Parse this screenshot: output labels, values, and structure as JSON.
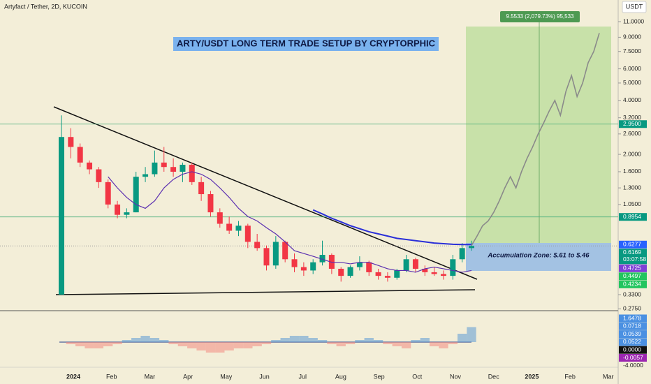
{
  "chart_data": {
    "type": "candlestick",
    "header": "Artyfact / Tether, 2D, KUCOIN",
    "currency": "USDT",
    "title": "ARTY/USDT LONG TERM TRADE SETUP BY CRYPTORPHIC",
    "target_label": "9.5533 (2,079.73%) 95,533",
    "zone_label": "Accumulation Zone: $.61 to $.46",
    "log_scale": true,
    "ylim": [
      0.275,
      11.0
    ],
    "yticks": [
      {
        "value": 11,
        "label": "11.0000"
      },
      {
        "value": 9,
        "label": "9.0000"
      },
      {
        "value": 7.5,
        "label": "7.5000"
      },
      {
        "value": 6,
        "label": "6.0000"
      },
      {
        "value": 5,
        "label": "5.0000"
      },
      {
        "value": 4,
        "label": "4.0000"
      },
      {
        "value": 3.2,
        "label": "3.2000"
      },
      {
        "value": 2.6,
        "label": "2.6000"
      },
      {
        "value": 2,
        "label": "2.0000"
      },
      {
        "value": 1.6,
        "label": "1.6000"
      },
      {
        "value": 1.3,
        "label": "1.3000"
      },
      {
        "value": 1.05,
        "label": "1.0500"
      },
      {
        "value": 0.33,
        "label": "0.3300"
      },
      {
        "value": 0.275,
        "label": "0.2750"
      }
    ],
    "price_tags": [
      {
        "value": 2.95,
        "label": "2.9500",
        "color": "#089981"
      },
      {
        "value": 0.8954,
        "label": "0.8954",
        "color": "#089981"
      },
      {
        "value": 0.6277,
        "label": "0.6277",
        "color": "#2962ff"
      },
      {
        "value": 0.6169,
        "label": "0.6169",
        "color": "#089981"
      },
      {
        "value": 0.4725,
        "label": "0.4725",
        "color": "#7e3fd6"
      },
      {
        "value": 0.4497,
        "label": "0.4497",
        "color": "#22c55e"
      },
      {
        "value": 0.4234,
        "label": "0.4234",
        "color": "#22c55e"
      }
    ],
    "countdown": "03:07:58",
    "x_labels": [
      "2024",
      "Feb",
      "Mar",
      "Apr",
      "May",
      "Jun",
      "Jul",
      "Aug",
      "Sep",
      "Oct",
      "Nov",
      "Dec",
      "2025",
      "Feb",
      "Mar"
    ],
    "candles": {
      "open": [
        0.33,
        2.5,
        2.2,
        1.8,
        1.65,
        1.4,
        1.05,
        0.92,
        0.95,
        1.5,
        1.55,
        1.8,
        1.7,
        1.6,
        1.75,
        1.4,
        1.2,
        0.95,
        0.82,
        0.75,
        0.8,
        0.65,
        0.6,
        0.48,
        0.65,
        0.52,
        0.47,
        0.45,
        0.5,
        0.55,
        0.46,
        0.42,
        0.47,
        0.5,
        0.44,
        0.42,
        0.41,
        0.45,
        0.52,
        0.46,
        0.44,
        0.43,
        0.42,
        0.52,
        0.6
      ],
      "high": [
        3.3,
        2.8,
        2.3,
        1.85,
        1.7,
        1.45,
        1.1,
        1.0,
        1.6,
        1.7,
        2.1,
        2.2,
        1.9,
        1.8,
        1.8,
        1.5,
        1.25,
        1.0,
        0.9,
        0.85,
        0.82,
        0.72,
        0.62,
        0.7,
        0.66,
        0.56,
        0.5,
        0.52,
        0.66,
        0.56,
        0.47,
        0.48,
        0.54,
        0.51,
        0.46,
        0.44,
        0.46,
        0.55,
        0.53,
        0.48,
        0.47,
        0.45,
        0.55,
        0.64,
        0.66
      ],
      "low": [
        0.33,
        1.9,
        1.7,
        1.55,
        1.3,
        1.0,
        0.88,
        0.88,
        0.95,
        1.4,
        1.5,
        1.6,
        1.5,
        1.4,
        1.35,
        1.1,
        0.9,
        0.78,
        0.72,
        0.7,
        0.6,
        0.58,
        0.45,
        0.46,
        0.5,
        0.44,
        0.42,
        0.43,
        0.48,
        0.43,
        0.39,
        0.41,
        0.45,
        0.42,
        0.4,
        0.39,
        0.4,
        0.44,
        0.44,
        0.42,
        0.42,
        0.4,
        0.4,
        0.5,
        0.58
      ],
      "close": [
        2.5,
        2.2,
        1.8,
        1.65,
        1.4,
        1.05,
        0.92,
        0.95,
        1.5,
        1.55,
        1.8,
        1.7,
        1.6,
        1.75,
        1.4,
        1.2,
        0.95,
        0.82,
        0.75,
        0.8,
        0.65,
        0.6,
        0.48,
        0.65,
        0.52,
        0.47,
        0.45,
        0.5,
        0.55,
        0.46,
        0.42,
        0.47,
        0.5,
        0.44,
        0.42,
        0.41,
        0.45,
        0.52,
        0.46,
        0.44,
        0.43,
        0.42,
        0.52,
        0.6,
        0.6169
      ]
    },
    "ma_short": {
      "color": "#5b2fb0",
      "values": [
        null,
        null,
        null,
        null,
        null,
        1.5,
        1.3,
        1.15,
        1.05,
        1.0,
        1.1,
        1.3,
        1.45,
        1.55,
        1.6,
        1.55,
        1.45,
        1.3,
        1.15,
        1.0,
        0.9,
        0.85,
        0.78,
        0.72,
        0.65,
        0.58,
        0.56,
        0.54,
        0.52,
        0.5,
        0.5,
        0.49,
        0.5,
        0.5,
        0.48,
        0.46,
        0.45,
        0.45,
        0.44,
        0.46,
        0.47,
        0.46,
        0.45,
        0.44,
        0.45
      ]
    },
    "ma_long": {
      "color": "#2a2fd8",
      "values": [
        null,
        null,
        null,
        null,
        null,
        null,
        null,
        null,
        null,
        null,
        null,
        null,
        null,
        null,
        null,
        null,
        null,
        null,
        null,
        null,
        null,
        null,
        null,
        null,
        null,
        null,
        null,
        0.98,
        0.93,
        0.88,
        0.84,
        0.8,
        0.77,
        0.74,
        0.72,
        0.7,
        0.68,
        0.67,
        0.66,
        0.65,
        0.64,
        0.635,
        0.63,
        0.628,
        0.6277
      ]
    },
    "projection": {
      "color": "#8a8a8a",
      "values": [
        0.62,
        0.7,
        0.8,
        0.85,
        0.95,
        1.1,
        1.3,
        1.5,
        1.3,
        1.6,
        1.9,
        2.2,
        2.6,
        3.0,
        3.5,
        4.0,
        3.3,
        4.5,
        5.5,
        4.2,
        5.0,
        6.5,
        7.5,
        9.5
      ]
    },
    "oscillator": {
      "values": [
        0,
        -0.01,
        -0.02,
        -0.03,
        -0.03,
        -0.02,
        -0.01,
        0.01,
        0.02,
        0.03,
        0.02,
        0.01,
        -0.01,
        -0.02,
        -0.03,
        -0.04,
        -0.05,
        -0.05,
        -0.04,
        -0.03,
        -0.03,
        -0.02,
        -0.01,
        0.01,
        0.02,
        0.03,
        0.03,
        0.02,
        0.01,
        -0.01,
        -0.02,
        -0.01,
        0.01,
        0.02,
        0.01,
        -0.01,
        -0.02,
        -0.03,
        0.01,
        0.02,
        -0.02,
        -0.03,
        -0.01,
        0.04,
        0.0718
      ],
      "tags": [
        {
          "value": 1.6478,
          "label": "1.6478",
          "color": "#4a90e2"
        },
        {
          "value": 0.0718,
          "label": "0.0718",
          "color": "#4a90e2"
        },
        {
          "value": 0.0539,
          "label": "0.0539",
          "color": "#4a90e2"
        },
        {
          "value": 0.0522,
          "label": "0.0522",
          "color": "#4a90e2"
        },
        {
          "value": 0,
          "label": "0.0000",
          "color": "#111111"
        },
        {
          "value": -0.0057,
          "label": "-0.0057",
          "color": "#9c27b0"
        },
        {
          "value": -4,
          "label": "-4.0000",
          "color": "#f3eed8"
        }
      ]
    }
  }
}
